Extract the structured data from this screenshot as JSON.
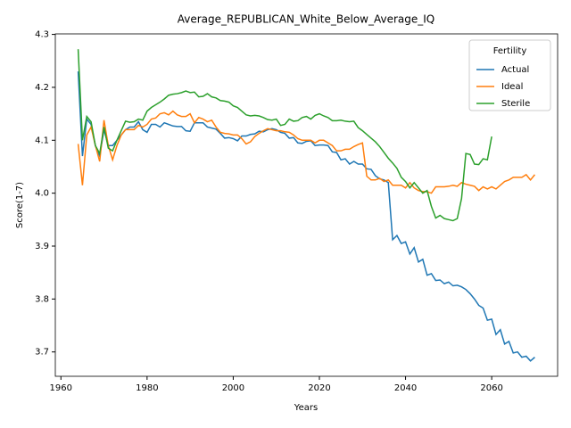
{
  "chart_data": {
    "type": "line",
    "title": "Average_REPUBLICAN_White_Below_Average_IQ",
    "x_label": "Years",
    "y_label": "Score(1-7)",
    "legend_title": "Fertility",
    "legend": "upper right",
    "grid": false,
    "xlim": [
      1958.7,
      2075.3
    ],
    "xticks": [
      1960,
      1980,
      2000,
      2020,
      2040,
      2060
    ],
    "ylim": [
      3.654,
      4.301
    ],
    "yticks": [
      3.7,
      3.8,
      3.9,
      {
        "value": 4,
        "label": "4.0"
      },
      4.1,
      4.2,
      4.3
    ],
    "x": [
      1964,
      1965,
      1966,
      1967,
      1968,
      1969,
      1970,
      1971,
      1972,
      1973,
      1974,
      1975,
      1976,
      1977,
      1978,
      1979,
      1980,
      1981,
      1982,
      1983,
      1984,
      1985,
      1986,
      1987,
      1988,
      1989,
      1990,
      1991,
      1992,
      1993,
      1994,
      1995,
      1996,
      1997,
      1998,
      1999,
      2000,
      2001,
      2002,
      2003,
      2004,
      2005,
      2006,
      2007,
      2008,
      2009,
      2010,
      2011,
      2012,
      2013,
      2014,
      2015,
      2016,
      2017,
      2018,
      2019,
      2020,
      2021,
      2022,
      2023,
      2024,
      2025,
      2026,
      2027,
      2028,
      2029,
      2030,
      2031,
      2032,
      2033,
      2034,
      2035,
      2036,
      2037,
      2038,
      2039,
      2040,
      2041,
      2042,
      2043,
      2044,
      2045,
      2046,
      2047,
      2048,
      2049,
      2050,
      2051,
      2052,
      2053,
      2054,
      2055,
      2056,
      2057,
      2058,
      2059,
      2060,
      2061,
      2062,
      2063,
      2064,
      2065,
      2066,
      2067,
      2068,
      2069,
      2070
    ],
    "series": [
      {
        "name": "Actual",
        "color": "#1f77b4",
        "values": [
          4.23,
          4.07,
          4.14,
          4.13,
          4.09,
          4.07,
          4.12,
          4.09,
          4.09,
          4.1,
          4.11,
          4.12,
          4.125,
          4.125,
          4.135,
          4.12,
          4.115,
          4.13,
          4.13,
          4.125,
          4.133,
          4.13,
          4.127,
          4.126,
          4.126,
          4.118,
          4.117,
          4.133,
          4.133,
          4.133,
          4.125,
          4.123,
          4.121,
          4.113,
          4.104,
          4.105,
          4.103,
          4.099,
          4.108,
          4.108,
          4.111,
          4.112,
          4.117,
          4.116,
          4.12,
          4.122,
          4.12,
          4.115,
          4.113,
          4.104,
          4.105,
          4.095,
          4.094,
          4.098,
          4.099,
          4.09,
          4.091,
          4.091,
          4.09,
          4.078,
          4.077,
          4.063,
          4.065,
          4.055,
          4.06,
          4.055,
          4.055,
          4.046,
          4.045,
          4.033,
          4.027,
          4.025,
          4.02,
          3.912,
          3.92,
          3.905,
          3.908,
          3.885,
          3.897,
          3.87,
          3.875,
          3.845,
          3.848,
          3.835,
          3.836,
          3.829,
          3.832,
          3.825,
          3.826,
          3.823,
          3.818,
          3.81,
          3.8,
          3.788,
          3.783,
          3.76,
          3.762,
          3.733,
          3.742,
          3.715,
          3.72,
          3.698,
          3.7,
          3.69,
          3.692,
          3.683,
          3.69
        ]
      },
      {
        "name": "Ideal",
        "color": "#ff7f0e",
        "values": [
          4.093,
          4.015,
          4.11,
          4.125,
          4.09,
          4.06,
          4.138,
          4.09,
          4.063,
          4.09,
          4.11,
          4.12,
          4.12,
          4.12,
          4.128,
          4.125,
          4.13,
          4.14,
          4.142,
          4.15,
          4.152,
          4.148,
          4.155,
          4.148,
          4.145,
          4.145,
          4.15,
          4.133,
          4.143,
          4.14,
          4.135,
          4.138,
          4.125,
          4.115,
          4.113,
          4.112,
          4.11,
          4.11,
          4.103,
          4.093,
          4.097,
          4.107,
          4.113,
          4.118,
          4.122,
          4.12,
          4.118,
          4.118,
          4.116,
          4.115,
          4.11,
          4.103,
          4.1,
          4.1,
          4.1,
          4.095,
          4.1,
          4.1,
          4.095,
          4.09,
          4.08,
          4.08,
          4.083,
          4.083,
          4.088,
          4.092,
          4.095,
          4.032,
          4.025,
          4.025,
          4.028,
          4.022,
          4.025,
          4.015,
          4.015,
          4.015,
          4.01,
          4.02,
          4.01,
          4.005,
          4.003,
          4.003,
          4.0,
          4.012,
          4.012,
          4.012,
          4.013,
          4.015,
          4.013,
          4.02,
          4.017,
          4.015,
          4.013,
          4.005,
          4.012,
          4.008,
          4.012,
          4.008,
          4.015,
          4.022,
          4.025,
          4.03,
          4.03,
          4.03,
          4.035,
          4.025,
          4.035
        ]
      },
      {
        "name": "Sterile",
        "color": "#2ca02c",
        "values": [
          4.272,
          4.1,
          4.145,
          4.135,
          4.09,
          4.075,
          4.125,
          4.085,
          4.08,
          4.1,
          4.118,
          4.136,
          4.134,
          4.135,
          4.14,
          4.138,
          4.155,
          4.162,
          4.167,
          4.172,
          4.178,
          4.185,
          4.187,
          4.188,
          4.19,
          4.193,
          4.19,
          4.191,
          4.182,
          4.183,
          4.188,
          4.182,
          4.18,
          4.175,
          4.174,
          4.172,
          4.165,
          4.162,
          4.155,
          4.148,
          4.146,
          4.147,
          4.146,
          4.143,
          4.139,
          4.138,
          4.14,
          4.128,
          4.13,
          4.14,
          4.136,
          4.137,
          4.143,
          4.145,
          4.14,
          4.147,
          4.15,
          4.146,
          4.143,
          4.137,
          4.137,
          4.138,
          4.136,
          4.135,
          4.136,
          4.124,
          4.118,
          4.111,
          4.104,
          4.097,
          4.088,
          4.077,
          4.066,
          4.057,
          4.047,
          4.03,
          4.022,
          4.01,
          4.02,
          4.01,
          4.0,
          4.005,
          3.975,
          3.953,
          3.958,
          3.952,
          3.95,
          3.948,
          3.952,
          3.99,
          4.075,
          4.073,
          4.055,
          4.054,
          4.065,
          4.063,
          4.107,
          null,
          null,
          null,
          null,
          null,
          null,
          null,
          null,
          null,
          null
        ]
      }
    ]
  }
}
